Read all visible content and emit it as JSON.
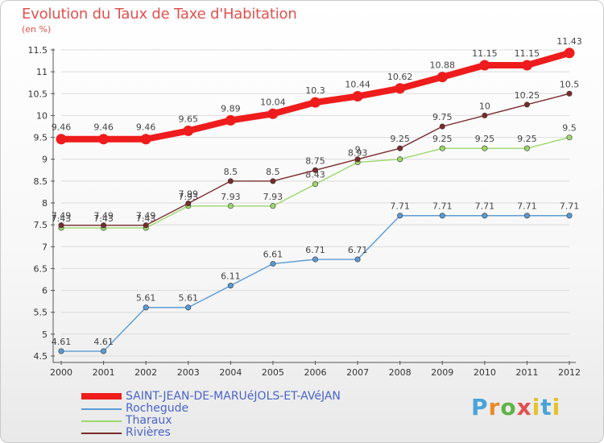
{
  "header": {
    "title": "Evolution du Taux de Taxe d'Habitation",
    "unit": "(en %)"
  },
  "chart_data": {
    "type": "line",
    "x": [
      "2000",
      "2001",
      "2002",
      "2003",
      "2004",
      "2005",
      "2006",
      "2007",
      "2008",
      "2009",
      "2010",
      "2011",
      "2012"
    ],
    "ylim": [
      4.5,
      11.5
    ],
    "yticks": [
      "4.5",
      "5",
      "5.5",
      "6",
      "6.5",
      "7",
      "7.5",
      "8",
      "8.5",
      "9",
      "9.5",
      "10",
      "10.5",
      "11",
      "11.5"
    ],
    "grid": true,
    "series": [
      {
        "name": "SAINT-JEAN-DE-MARUéJOLS-ET-AVéJAN",
        "color": "#ee1c1c",
        "values": [
          9.46,
          9.46,
          9.46,
          9.65,
          9.89,
          10.04,
          10.3,
          10.44,
          10.62,
          10.88,
          11.15,
          11.15,
          11.43
        ],
        "labels": [
          "9.46",
          "9.46",
          "9.46",
          "9.65",
          "9.89",
          "10.04",
          "10.3",
          "10.44",
          "10.62",
          "10.88",
          "11.15",
          "11.15",
          "11.43"
        ]
      },
      {
        "name": "Rochegude",
        "color": "#5b9bd5",
        "values": [
          4.61,
          4.61,
          5.61,
          5.61,
          6.11,
          6.61,
          6.71,
          6.71,
          7.71,
          7.71,
          7.71,
          7.71,
          7.71
        ],
        "labels": [
          "4.61",
          "4.61",
          "5.61",
          "5.61",
          "6.11",
          "6.61",
          "6.71",
          "6.71",
          "7.71",
          "7.71",
          "7.71",
          "7.71",
          "7.71"
        ]
      },
      {
        "name": "Tharaux",
        "color": "#9bd86b",
        "values": [
          7.43,
          7.43,
          7.43,
          7.93,
          7.93,
          7.93,
          8.43,
          8.93,
          9.0,
          9.25,
          9.25,
          9.25,
          9.5
        ],
        "labels": [
          "7.43",
          "7.43",
          "7.43",
          "7.93",
          "7.93",
          "7.93",
          "8.43",
          "8.93",
          "",
          "9.25",
          "9.25",
          "9.25",
          "9.5"
        ]
      },
      {
        "name": "Rivières",
        "color": "#7a2b2b",
        "values": [
          7.49,
          7.49,
          7.49,
          7.99,
          8.5,
          8.5,
          8.75,
          9.0,
          9.25,
          9.75,
          10.0,
          10.25,
          10.5
        ],
        "labels": [
          "7.49",
          "7.49",
          "7.49",
          "7.99",
          "8.5",
          "8.5",
          "8.75",
          "9",
          "9.25",
          "9.75",
          "10",
          "10.25",
          "10.5"
        ]
      }
    ]
  },
  "logo": {
    "p": "P",
    "r": "r",
    "o": "o",
    "x": "x",
    "i": "i",
    "t": "t",
    "i2": "i"
  }
}
